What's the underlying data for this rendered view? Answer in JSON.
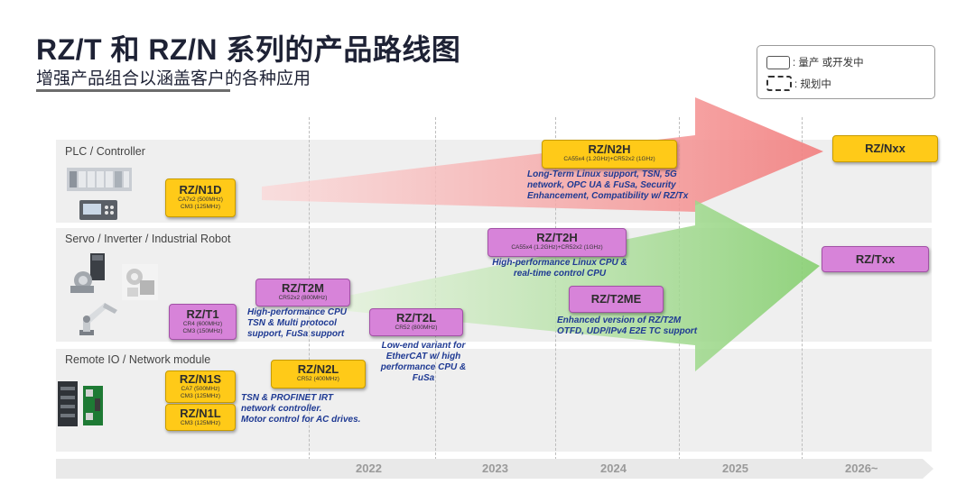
{
  "header": {
    "title": "RZ/T 和  RZ/N 系列的产品路线图",
    "subtitle": "增强产品组合以涵盖客户的各种应用"
  },
  "legend": {
    "solid_label": ": 量产  或开发中",
    "dashed_label": ": 规划中"
  },
  "bands": [
    {
      "label": "PLC / Controller"
    },
    {
      "label": "Servo / Inverter / Industrial Robot"
    },
    {
      "label": "Remote IO / Network module"
    }
  ],
  "years": [
    "2022",
    "2023",
    "2024",
    "2025",
    "2026~"
  ],
  "chips": {
    "n1d": {
      "name": "RZ/N1D",
      "spec1": "CA7x2 (500MHz)",
      "spec2": "CM3 (125MHz)"
    },
    "n2h": {
      "name": "RZ/N2H",
      "spec1": "CA55x4 (1.2GHz)+CR52x2 (1GHz)"
    },
    "nxx": {
      "name": "RZ/Nxx"
    },
    "t2h": {
      "name": "RZ/T2H",
      "spec1": "CA55x4 (1.2GHz)+CR52x2 (1GHz)"
    },
    "txx": {
      "name": "RZ/Txx"
    },
    "t2m": {
      "name": "RZ/T2M",
      "spec1": "CR52x2 (800MHz)"
    },
    "t1": {
      "name": "RZ/T1",
      "spec1": "CR4 (600MHz)",
      "spec2": "CM3 (150MHz)"
    },
    "t2l": {
      "name": "RZ/T2L",
      "spec1": "CR52 (800MHz)"
    },
    "t2me": {
      "name": "RZ/T2ME"
    },
    "n1s": {
      "name": "RZ/N1S",
      "spec1": "CA7 (500MHz)",
      "spec2": "CM3 (125MHz)"
    },
    "n1l": {
      "name": "RZ/N1L",
      "spec1": "CM3 (125MHz)"
    },
    "n2l": {
      "name": "RZ/N2L",
      "spec1": "CR52 (400MHz)"
    }
  },
  "notes": {
    "n2h": [
      "Long-Term Linux support, TSN, 5G",
      "network, OPC UA & FuSa, Security",
      "Enhancement, Compatibility w/ RZ/Tx"
    ],
    "t2h": [
      "High-performance Linux CPU &",
      "real-time control CPU"
    ],
    "t2m": [
      "High-performance CPU",
      "TSN & Multi protocol",
      "support, FuSa support"
    ],
    "t2l": [
      "Low-end variant for",
      "EtherCAT w/ high",
      "performance CPU &",
      "FuSa"
    ],
    "t2me": [
      "Enhanced version of RZ/T2M",
      "OTFD, UDP/IPv4 E2E TC support"
    ],
    "n2l": [
      "TSN & PROFINET IRT",
      "network controller.",
      "Motor control for AC drives."
    ]
  },
  "icons": [
    "plc-rack-icon",
    "controller-panel-icon",
    "servo-motor-icon",
    "servo-drive-icon",
    "industrial-robot-arm-icon",
    "remote-io-module-icon",
    "network-module-icon"
  ],
  "colors": {
    "product_yellow": "#ffca18",
    "product_purple": "#d783d9",
    "arrow_red": "#f48a8a",
    "arrow_green": "#8ed47a",
    "note_blue": "#1f3a93"
  }
}
